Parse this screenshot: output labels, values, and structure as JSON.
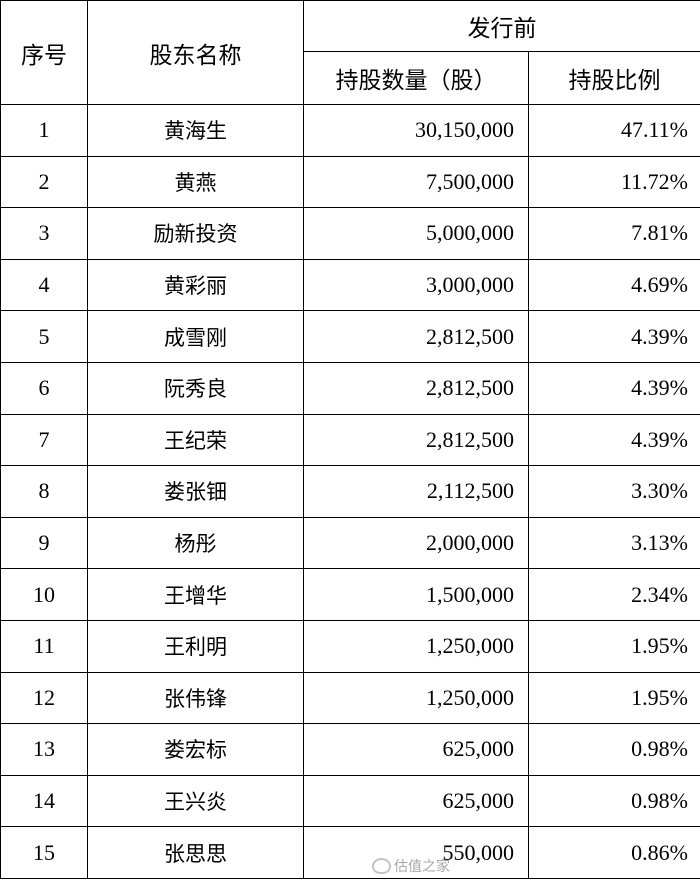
{
  "header": {
    "seq": "序号",
    "name": "股东名称",
    "group": "发行前",
    "shares": "持股数量（股）",
    "ratio": "持股比例"
  },
  "rows": [
    {
      "seq": "1",
      "name": "黄海生",
      "shares": "30,150,000",
      "ratio": "47.11%"
    },
    {
      "seq": "2",
      "name": "黄燕",
      "shares": "7,500,000",
      "ratio": "11.72%"
    },
    {
      "seq": "3",
      "name": "励新投资",
      "shares": "5,000,000",
      "ratio": "7.81%"
    },
    {
      "seq": "4",
      "name": "黄彩丽",
      "shares": "3,000,000",
      "ratio": "4.69%"
    },
    {
      "seq": "5",
      "name": "成雪刚",
      "shares": "2,812,500",
      "ratio": "4.39%"
    },
    {
      "seq": "6",
      "name": "阮秀良",
      "shares": "2,812,500",
      "ratio": "4.39%"
    },
    {
      "seq": "7",
      "name": "王纪荣",
      "shares": "2,812,500",
      "ratio": "4.39%"
    },
    {
      "seq": "8",
      "name": "娄张钿",
      "shares": "2,112,500",
      "ratio": "3.30%"
    },
    {
      "seq": "9",
      "name": "杨彤",
      "shares": "2,000,000",
      "ratio": "3.13%"
    },
    {
      "seq": "10",
      "name": "王增华",
      "shares": "1,500,000",
      "ratio": "2.34%"
    },
    {
      "seq": "11",
      "name": "王利明",
      "shares": "1,250,000",
      "ratio": "1.95%"
    },
    {
      "seq": "12",
      "name": "张伟锋",
      "shares": "1,250,000",
      "ratio": "1.95%"
    },
    {
      "seq": "13",
      "name": "娄宏标",
      "shares": "625,000",
      "ratio": "0.98%"
    },
    {
      "seq": "14",
      "name": "王兴炎",
      "shares": "625,000",
      "ratio": "0.98%"
    },
    {
      "seq": "15",
      "name": "张思思",
      "shares": "550,000",
      "ratio": "0.86%"
    }
  ],
  "watermark": {
    "text": "估值之家",
    "icon": "weibo-icon"
  }
}
